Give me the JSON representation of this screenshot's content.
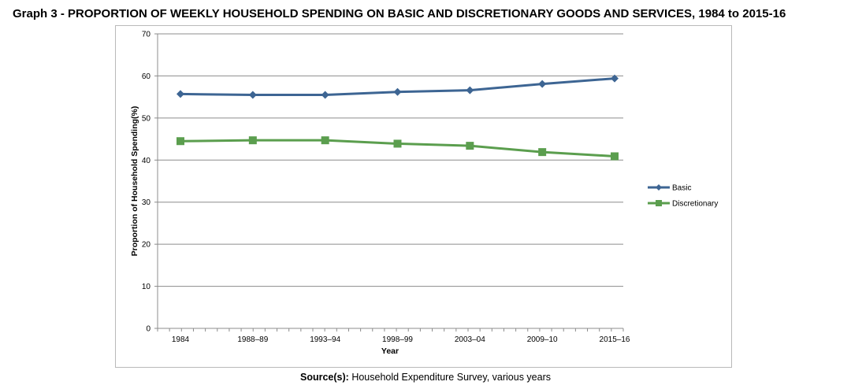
{
  "title": "Graph 3 - PROPORTION OF WEEKLY HOUSEHOLD SPENDING ON BASIC AND DISCRETIONARY GOODS AND SERVICES, 1984 to 2015-16",
  "source": {
    "label": "Source(s):",
    "text": "Household Expenditure Survey, various years"
  },
  "chart_data": {
    "type": "line",
    "categories": [
      "1984",
      "1988–89",
      "1993–94",
      "1998–99",
      "2003–04",
      "2009–10",
      "2015–16"
    ],
    "series": [
      {
        "name": "Basic",
        "values": [
          55.7,
          55.5,
          55.5,
          56.2,
          56.6,
          58.1,
          59.4
        ],
        "color": "#3d6593",
        "marker": "diamond"
      },
      {
        "name": "Discretionary",
        "values": [
          44.5,
          44.7,
          44.7,
          43.9,
          43.4,
          41.9,
          40.9
        ],
        "color": "#5b9e4e",
        "marker": "square"
      }
    ],
    "xlabel": "Year",
    "ylabel": "Proportion of Household Spending(%)",
    "ylim": [
      0,
      70
    ],
    "yticks": [
      0,
      10,
      20,
      30,
      40,
      50,
      60,
      70
    ],
    "grid": true,
    "legend": "right"
  }
}
